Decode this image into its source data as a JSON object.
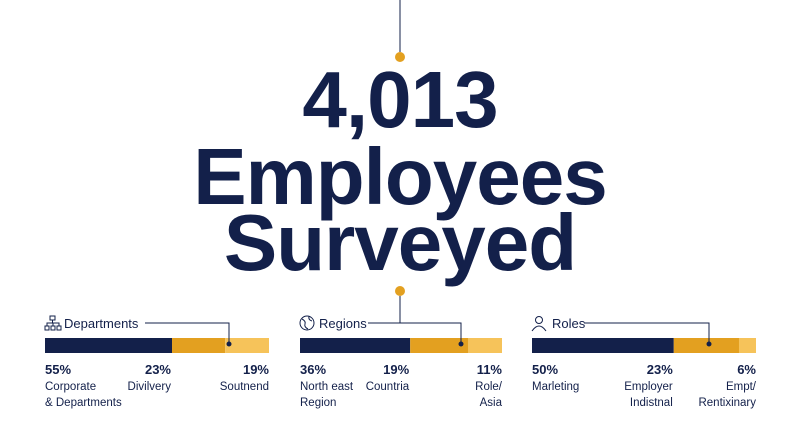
{
  "headline": [
    "4,013",
    "Employees",
    "Surveyed"
  ],
  "panels": [
    {
      "title": "Departments",
      "segments": [
        {
          "value": 55,
          "value_label": "55%",
          "label": [
            "Corporate",
            "& Departments"
          ]
        },
        {
          "value": 23,
          "value_label": "23%",
          "label": [
            "Divilvery"
          ]
        },
        {
          "value": 19,
          "value_label": "19%",
          "label": [
            "Soutnend"
          ]
        }
      ]
    },
    {
      "title": "Regions",
      "segments": [
        {
          "value": 36,
          "value_label": "36%",
          "label": [
            "North east",
            "Region"
          ]
        },
        {
          "value": 19,
          "value_label": "19%",
          "label": [
            "Countria"
          ]
        },
        {
          "value": 11,
          "value_label": "11%",
          "label": [
            "Role/",
            "Asia"
          ]
        }
      ]
    },
    {
      "title": "Roles",
      "segments": [
        {
          "value": 50,
          "value_label": "50%",
          "label": [
            "Marleting"
          ]
        },
        {
          "value": 23,
          "value_label": "23%",
          "label": [
            "Employer",
            "Indistnal"
          ]
        },
        {
          "value": 6,
          "value_label": "6%",
          "label": [
            "Empt/",
            "Rentixinary"
          ]
        }
      ]
    }
  ],
  "colors": [
    "#13204a",
    "#e3a020",
    "#f6c35a"
  ]
}
